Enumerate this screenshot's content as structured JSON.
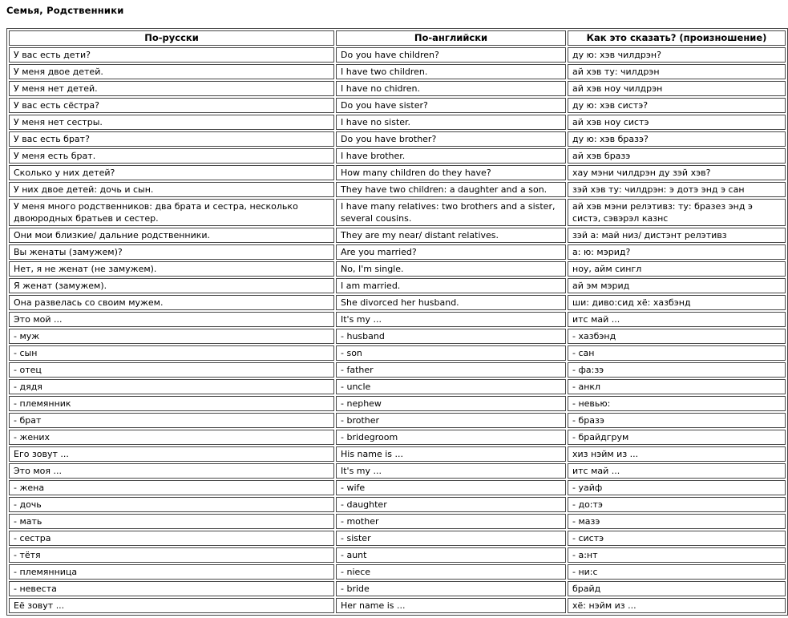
{
  "title": "Семья, Родственники",
  "table": {
    "headers": [
      "По-русски",
      "По-английски",
      "Как это сказать? (произношение)"
    ],
    "rows": [
      [
        "У вас есть дети?",
        "Do you have children?",
        "ду ю: хэв чилдрэн?"
      ],
      [
        "У меня двое детей.",
        "I have two children.",
        "ай хэв ту: чилдрэн"
      ],
      [
        "У меня нет детей.",
        "I have no chidren.",
        "ай хэв ноу чилдрэн"
      ],
      [
        "У вас есть сёстра?",
        "Do you have sister?",
        "ду ю: хэв систэ?"
      ],
      [
        "У меня нет сестры.",
        "I have no sister.",
        "ай хэв ноу систэ"
      ],
      [
        "У вас есть брат?",
        "Do you have brother?",
        "ду ю: хэв бразэ?"
      ],
      [
        "У меня есть брат.",
        "I have brother.",
        "ай хэв бразэ"
      ],
      [
        "Сколько у них детей?",
        "How many children do they have?",
        "хау мэни чилдрэн ду зэй хэв?"
      ],
      [
        "У них двое детей: дочь и сын.",
        "They have two children: a daughter and a son.",
        "зэй хэв ту: чилдрэн: э дотэ энд э сан"
      ],
      [
        "У меня много родственников: два брата и сестра, несколько двоюродных братьев и сестер.",
        "I have many relatives: two brothers and a sister, several cousins.",
        "ай хэв мэни релэтивз: ту: бразез энд э систэ, сэвэрэл казнс"
      ],
      [
        "Они мои близкие/ дальние родственники.",
        "They are my near/ distant relatives.",
        "зэй а: май низ/ дистэнт релэтивз"
      ],
      [
        "Вы женаты (замужем)?",
        "Are you married?",
        "а: ю: мэрид?"
      ],
      [
        "Нет, я не женат (не замужем).",
        "No, I'm single.",
        "ноу, айм сингл"
      ],
      [
        "Я женат (замужем).",
        "I am married.",
        "ай эм мэрид"
      ],
      [
        "Она развелась со своим мужем.",
        "She divorced her husband.",
        "ши: диво:сид хё: хазбэнд"
      ],
      [
        "Это мой ...",
        "It's my ...",
        "итс май ..."
      ],
      [
        "- муж",
        "- husband",
        "- хазбэнд"
      ],
      [
        "- сын",
        "- son",
        "- сан"
      ],
      [
        "- отец",
        "- father",
        "- фа:зэ"
      ],
      [
        "- дядя",
        "- uncle",
        "- анкл"
      ],
      [
        "- племянник",
        "- nephew",
        "- невью:"
      ],
      [
        "- брат",
        "- brother",
        "- бразэ"
      ],
      [
        "- жених",
        "- bridegroom",
        "- брайдгрум"
      ],
      [
        "Его зовут ...",
        "His name is ...",
        "хиз нэйм из ..."
      ],
      [
        "Это моя ...",
        "It's my ...",
        "итс май ..."
      ],
      [
        "- жена",
        "- wife",
        "- уайф"
      ],
      [
        "- дочь",
        "- daughter",
        "- до:тэ"
      ],
      [
        "- мать",
        "- mother",
        "- мазэ"
      ],
      [
        "- сестра",
        "- sister",
        "- систэ"
      ],
      [
        "- тётя",
        "- aunt",
        "- а:нт"
      ],
      [
        "- племянница",
        "- niece",
        "- ни:с"
      ],
      [
        "- невеста",
        "- bride",
        "брайд"
      ],
      [
        "Её зовут ...",
        "Her name is ...",
        "хё: нэйм из ..."
      ]
    ]
  }
}
